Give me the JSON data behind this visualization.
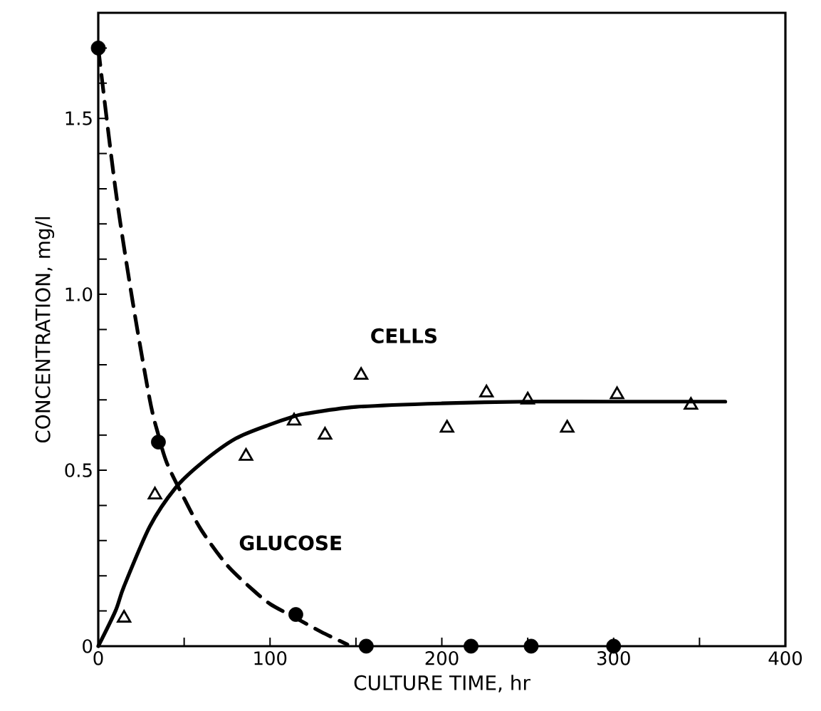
{
  "chart_data": {
    "type": "scatter",
    "xlabel": "CULTURE TIME, hr",
    "ylabel": "CONCENTRATION, mg/l",
    "xlim": [
      0,
      400
    ],
    "ylim": [
      0,
      1.8
    ],
    "xticks": [
      0,
      {
        "value": 50,
        "label": null
      },
      100,
      {
        "value": 150,
        "label": null
      },
      200,
      {
        "value": 250,
        "label": null
      },
      300,
      {
        "value": 350,
        "label": null
      },
      400
    ],
    "yticks": [
      0,
      {
        "value": 0.1,
        "label": null
      },
      {
        "value": 0.2,
        "label": null
      },
      {
        "value": 0.3,
        "label": null
      },
      {
        "value": 0.4,
        "label": null
      },
      {
        "value": 0.5,
        "label": "0.5"
      },
      {
        "value": 0.6,
        "label": null
      },
      {
        "value": 0.7,
        "label": null
      },
      {
        "value": 0.8,
        "label": null
      },
      {
        "value": 0.9,
        "label": null
      },
      {
        "value": 1.0,
        "label": "1.0"
      },
      {
        "value": 1.1,
        "label": null
      },
      {
        "value": 1.2,
        "label": null
      },
      {
        "value": 1.3,
        "label": null
      },
      {
        "value": 1.4,
        "label": null
      },
      {
        "value": 1.5,
        "label": "1.5"
      },
      {
        "value": 1.6,
        "label": null
      },
      {
        "value": 1.7,
        "label": null
      }
    ],
    "grid": false,
    "legend": false,
    "annotations": [
      "CELLS",
      "GLUCOSE"
    ],
    "series": [
      {
        "marker": "circle",
        "color": "#000000",
        "x": [
          0,
          35,
          115,
          156,
          217,
          252,
          300
        ],
        "values": [
          1.7,
          0.58,
          0.09,
          0,
          0,
          0,
          0
        ]
      },
      {
        "marker": "triangle",
        "color": "#000000",
        "x": [
          15,
          33,
          86,
          114,
          132,
          153,
          203,
          226,
          250,
          273,
          302,
          345
        ],
        "values": [
          0.08,
          0.43,
          0.54,
          0.64,
          0.6,
          0.77,
          0.62,
          0.72,
          0.7,
          0.62,
          0.715,
          0.685
        ]
      },
      {
        "type": "line",
        "line_style": "dashed",
        "color": "#000000",
        "x": [
          0,
          10,
          20,
          30,
          35,
          40,
          50,
          60,
          75,
          90,
          100,
          115,
          130,
          145
        ],
        "values": [
          1.7,
          1.3,
          0.98,
          0.7,
          0.6,
          0.52,
          0.42,
          0.33,
          0.23,
          0.16,
          0.12,
          0.08,
          0.04,
          0.005
        ]
      },
      {
        "type": "line",
        "line_style": "solid",
        "color": "#000000",
        "x": [
          0,
          10,
          15,
          30,
          45,
          60,
          80,
          100,
          112,
          120,
          150,
          200,
          250,
          300,
          365
        ],
        "values": [
          0,
          0.1,
          0.17,
          0.34,
          0.45,
          0.52,
          0.59,
          0.63,
          0.65,
          0.66,
          0.68,
          0.69,
          0.695,
          0.695,
          0.695
        ]
      }
    ]
  }
}
